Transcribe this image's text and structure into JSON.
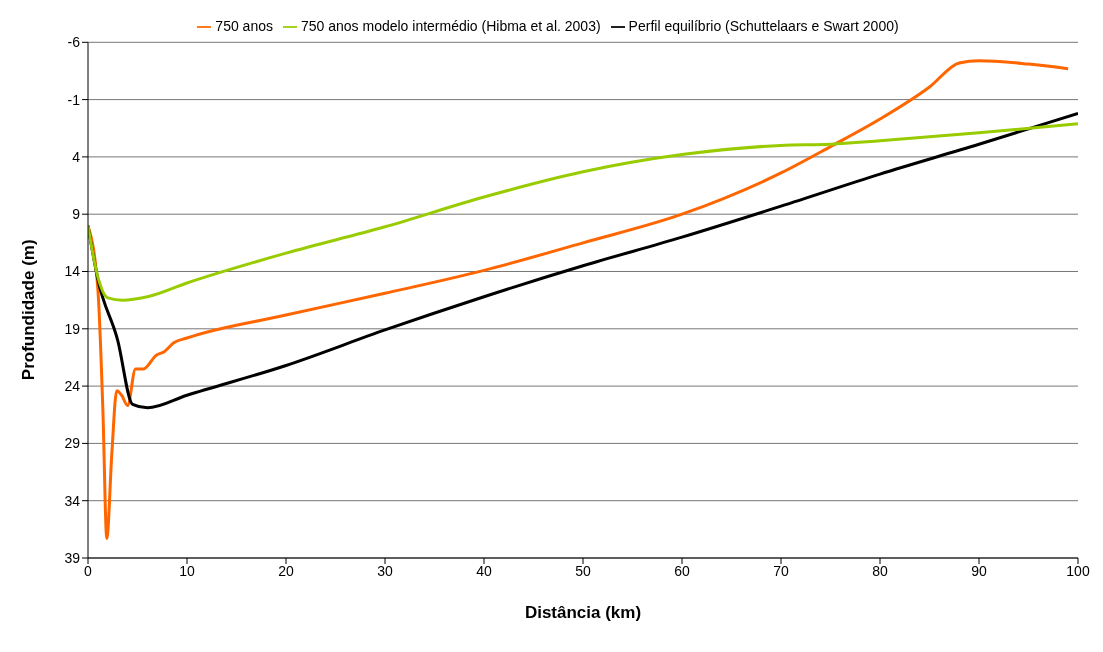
{
  "chart_data": {
    "type": "line",
    "xlabel": "Distância (km)",
    "ylabel": "Profundidade (m)",
    "xlim": [
      0,
      100
    ],
    "xticks": [
      0,
      10,
      20,
      30,
      40,
      50,
      60,
      70,
      80,
      90,
      100
    ],
    "ylim": [
      39,
      -6
    ],
    "yticks": [
      -6,
      -1,
      4,
      9,
      14,
      19,
      24,
      29,
      34,
      39
    ],
    "grid": "y",
    "legend": "top",
    "marker": "none",
    "line_style": "solid",
    "series": [
      {
        "name": "750 anos",
        "color": "#ff6600",
        "x": [
          0,
          1,
          1.5,
          1.9,
          2.4,
          2.9,
          3.4,
          4,
          4.8,
          5.6,
          6.9,
          7.7,
          8.7,
          10,
          20,
          30,
          40,
          50,
          60,
          70,
          75,
          80,
          85,
          88,
          90,
          95,
          99
        ],
        "values": [
          10,
          15.6,
          26,
          37.3,
          30,
          24.4,
          24.8,
          25.7,
          22.5,
          22.5,
          21.3,
          21,
          20.2,
          19.8,
          17.8,
          15.9,
          13.9,
          11.5,
          9,
          5.4,
          3.1,
          0.7,
          -2.1,
          -4.2,
          -4.4,
          -4.1,
          -3.7
        ]
      },
      {
        "name": "Perfil equilíbrio (Schuttelaars e Swart 2000)",
        "color": "#000000",
        "x": [
          0,
          1,
          3,
          4.5,
          6,
          10,
          20,
          30,
          40,
          50,
          60,
          70,
          80,
          90,
          100
        ],
        "values": [
          10,
          14.7,
          20,
          25.6,
          25.9,
          24.8,
          22.2,
          19.1,
          16.2,
          13.5,
          11,
          8.3,
          5.5,
          2.9,
          0.2
        ]
      },
      {
        "name": "750 anos modelo intermédio (Hibma et al. 2003)",
        "color": "#99cc00",
        "x": [
          0,
          1,
          2,
          3.5,
          6,
          10,
          20,
          30,
          40,
          50,
          60,
          70,
          75,
          80,
          90,
          100
        ],
        "values": [
          10,
          14.5,
          16.3,
          16.5,
          16.2,
          15,
          12.4,
          10.1,
          7.5,
          5.3,
          3.8,
          3,
          2.9,
          2.6,
          1.9,
          1.1
        ]
      }
    ]
  }
}
